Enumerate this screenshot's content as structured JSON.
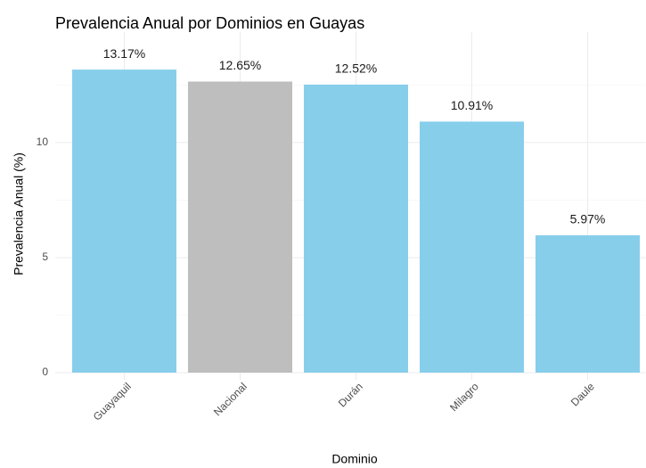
{
  "chart_data": {
    "type": "bar",
    "title": "Prevalencia Anual por Dominios en Guayas",
    "x_label": "Dominio",
    "y_label": "Prevalencia Anual (%)",
    "categories": [
      "Guayaquil",
      "Nacional",
      "Durán",
      "Milagro",
      "Daule"
    ],
    "values": [
      13.17,
      12.65,
      12.52,
      10.91,
      5.97
    ],
    "value_labels": [
      "13.17%",
      "12.65%",
      "12.52%",
      "10.91%",
      "5.97%"
    ],
    "colors": [
      "#87ceeb",
      "#bebebe",
      "#87ceeb",
      "#87ceeb",
      "#87ceeb"
    ],
    "ylim": [
      0,
      14.8
    ],
    "yticks": [
      0,
      5,
      10
    ],
    "minor_yticks": [
      2.5,
      7.5,
      12.5
    ],
    "grid": true
  }
}
